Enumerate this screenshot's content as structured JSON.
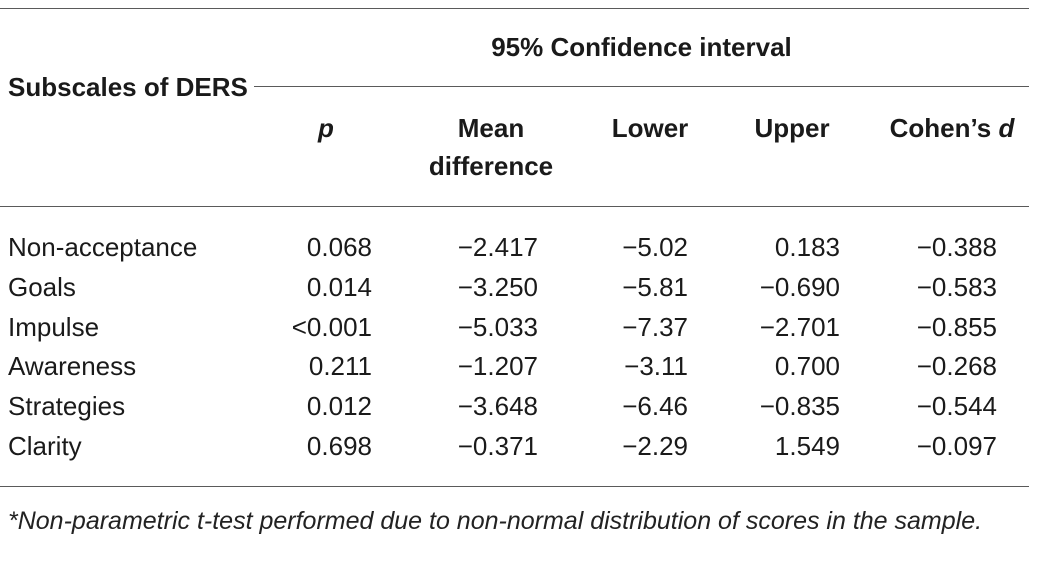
{
  "table": {
    "stub_header": "Subscales of DERS",
    "spanner_header": "95% Confidence interval",
    "columns": {
      "p": "p",
      "mean_difference": "Mean difference",
      "lower": "Lower",
      "upper": "Upper",
      "cohens_prefix": "Cohen’s",
      "cohens_symbol": "d"
    },
    "rows": [
      {
        "label": "Non-acceptance",
        "p": "0.068",
        "mean_difference": "−2.417",
        "lower": "−5.02",
        "upper": "0.183",
        "cohens_d": "−0.388"
      },
      {
        "label": "Goals",
        "p": "0.014",
        "mean_difference": "−3.250",
        "lower": "−5.81",
        "upper": "−0.690",
        "cohens_d": "−0.583"
      },
      {
        "label": "Impulse",
        "p": "<0.001",
        "mean_difference": "−5.033",
        "lower": "−7.37",
        "upper": "−2.701",
        "cohens_d": "−0.855"
      },
      {
        "label": "Awareness",
        "p": "0.211",
        "mean_difference": "−1.207",
        "lower": "−3.11",
        "upper": "0.700",
        "cohens_d": "−0.268"
      },
      {
        "label": "Strategies",
        "p": "0.012",
        "mean_difference": "−3.648",
        "lower": "−6.46",
        "upper": "−0.835",
        "cohens_d": "−0.544"
      },
      {
        "label": "Clarity",
        "p": "0.698",
        "mean_difference": "−0.371",
        "lower": "−2.29",
        "upper": "1.549",
        "cohens_d": "−0.097"
      }
    ],
    "footnote": "*Non-parametric t-test performed due to non-normal distribution of scores in the sample."
  }
}
